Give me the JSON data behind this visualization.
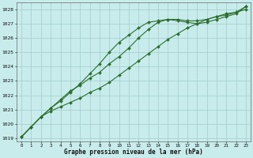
{
  "title": "Graphe pression niveau de la mer (hPa)",
  "bg_color": "#c8ecec",
  "grid_color": "#a8d0d0",
  "line_color": "#2d6e2d",
  "xlim_min": -0.5,
  "xlim_max": 23.5,
  "ylim_min": 1018.8,
  "ylim_max": 1028.5,
  "yticks": [
    1019,
    1020,
    1021,
    1022,
    1023,
    1024,
    1025,
    1026,
    1027,
    1028
  ],
  "xticks": [
    0,
    1,
    2,
    3,
    4,
    5,
    6,
    7,
    8,
    9,
    10,
    11,
    12,
    13,
    14,
    15,
    16,
    17,
    18,
    19,
    20,
    21,
    22,
    23
  ],
  "line1_x": [
    0,
    1,
    2,
    3,
    4,
    5,
    6,
    7,
    8,
    9,
    10,
    11,
    12,
    13,
    14,
    15,
    16,
    17,
    18,
    19,
    20,
    21,
    22,
    23
  ],
  "line1_y": [
    1019.1,
    1019.8,
    1020.5,
    1020.9,
    1021.2,
    1021.5,
    1021.8,
    1022.2,
    1022.5,
    1022.9,
    1023.4,
    1023.9,
    1024.4,
    1024.9,
    1025.4,
    1025.9,
    1026.3,
    1026.7,
    1027.0,
    1027.3,
    1027.5,
    1027.7,
    1027.8,
    1028.2
  ],
  "line2_x": [
    0,
    1,
    2,
    3,
    4,
    5,
    6,
    7,
    8,
    9,
    10,
    11,
    12,
    13,
    14,
    15,
    16,
    17,
    18,
    19,
    20,
    21,
    22,
    23
  ],
  "line2_y": [
    1019.1,
    1019.8,
    1020.5,
    1021.1,
    1021.6,
    1022.2,
    1022.8,
    1023.5,
    1024.2,
    1025.0,
    1025.7,
    1026.2,
    1026.7,
    1027.1,
    1027.2,
    1027.3,
    1027.2,
    1027.1,
    1027.0,
    1027.1,
    1027.3,
    1027.5,
    1027.7,
    1028.2
  ],
  "line3_x": [
    0,
    1,
    2,
    3,
    4,
    5,
    6,
    7,
    8,
    9,
    10,
    11,
    12,
    13,
    14,
    15,
    16,
    17,
    18,
    19,
    20,
    21,
    22,
    23
  ],
  "line3_y": [
    1019.1,
    1019.8,
    1020.5,
    1021.1,
    1021.7,
    1022.3,
    1022.7,
    1023.2,
    1023.6,
    1024.2,
    1024.7,
    1025.3,
    1026.0,
    1026.6,
    1027.1,
    1027.3,
    1027.3,
    1027.2,
    1027.2,
    1027.3,
    1027.5,
    1027.6,
    1027.8,
    1028.0
  ]
}
